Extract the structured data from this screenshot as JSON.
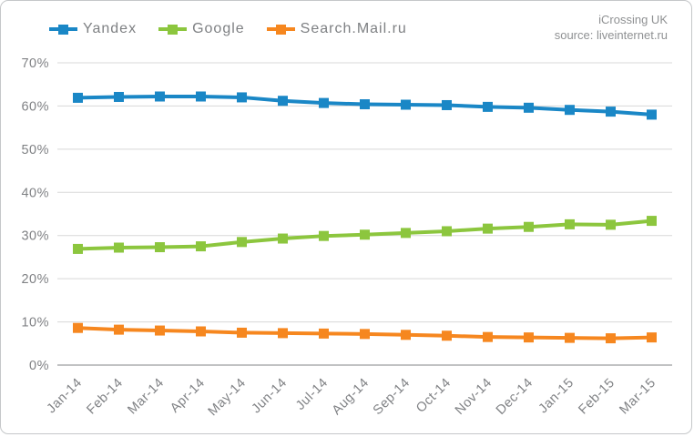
{
  "attribution": {
    "line1": "iCrossing UK",
    "line2": "source: liveinternet.ru"
  },
  "legend": {
    "items": [
      {
        "label": "Yandex",
        "color": "#1a87c6"
      },
      {
        "label": "Google",
        "color": "#8cc63e"
      },
      {
        "label": "Search.Mail.ru",
        "color": "#f6871f"
      }
    ]
  },
  "chart_data": {
    "type": "line",
    "title": "",
    "xlabel": "",
    "ylabel": "",
    "categories": [
      "Jan-14",
      "Feb-14",
      "Mar-14",
      "Apr-14",
      "May-14",
      "Jun-14",
      "Jul-14",
      "Aug-14",
      "Sep-14",
      "Oct-14",
      "Nov-14",
      "Dec-14",
      "Jan-15",
      "Feb-15",
      "Mar-15"
    ],
    "series": [
      {
        "name": "Yandex",
        "color": "#1a87c6",
        "values": [
          61.9,
          62.1,
          62.2,
          62.2,
          62.0,
          61.2,
          60.7,
          60.4,
          60.3,
          60.2,
          59.8,
          59.6,
          59.1,
          58.7,
          58.0
        ]
      },
      {
        "name": "Google",
        "color": "#8cc63e",
        "values": [
          26.9,
          27.2,
          27.3,
          27.5,
          28.5,
          29.3,
          29.9,
          30.2,
          30.6,
          31.0,
          31.6,
          32.0,
          32.6,
          32.5,
          33.4
        ]
      },
      {
        "name": "Search.Mail.ru",
        "color": "#f6871f",
        "values": [
          8.6,
          8.2,
          8.0,
          7.8,
          7.5,
          7.4,
          7.3,
          7.2,
          7.0,
          6.8,
          6.5,
          6.4,
          6.3,
          6.2,
          6.4
        ]
      }
    ],
    "ylim": [
      0,
      70
    ],
    "yticks": [
      0,
      10,
      20,
      30,
      40,
      50,
      60,
      70
    ],
    "ytick_labels": [
      "0%",
      "10%",
      "20%",
      "30%",
      "40%",
      "50%",
      "60%",
      "70%"
    ],
    "grid": "horizontal",
    "legend_position": "top-left",
    "marker": "square",
    "colors": {
      "gridline": "#d8d8d8",
      "axis_line": "#9c9e9f",
      "text": "#808285"
    }
  }
}
